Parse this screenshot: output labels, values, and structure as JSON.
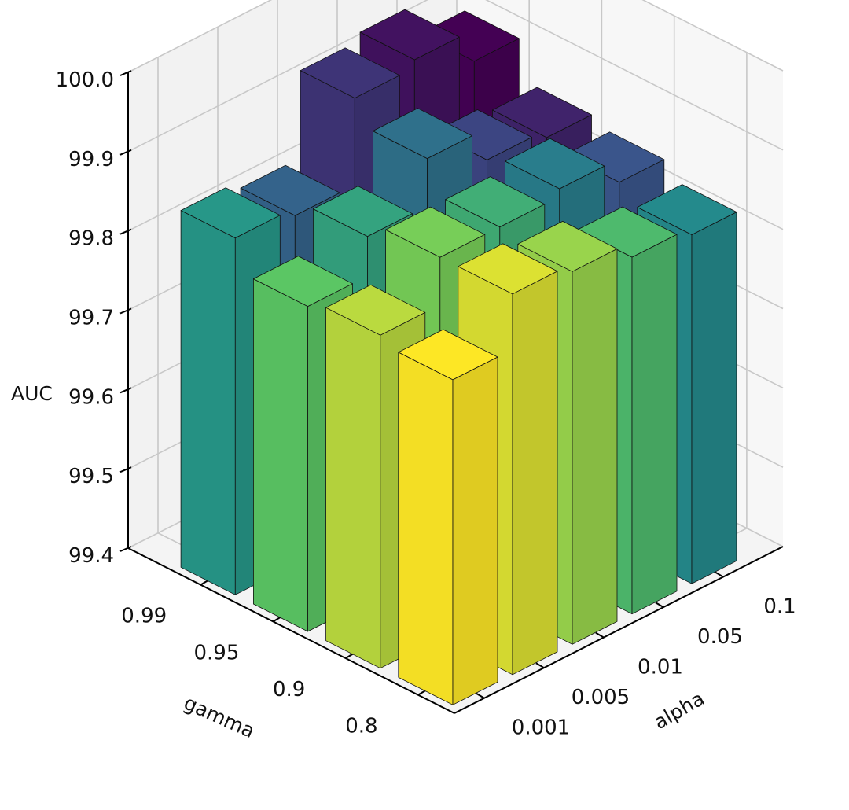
{
  "chart_data": {
    "type": "bar3d",
    "xlabel": "alpha",
    "ylabel": "gamma",
    "zlabel": "AUC",
    "alpha_ticks": [
      "0.001",
      "0.005",
      "0.01",
      "0.05",
      "0.1"
    ],
    "gamma_ticks": [
      "0.8",
      "0.9",
      "0.95",
      "0.99"
    ],
    "z_ticks": [
      "99.4",
      "99.5",
      "99.6",
      "99.7",
      "99.8",
      "99.9",
      "100.0"
    ],
    "zlim": [
      99.4,
      100.0
    ],
    "grid": true,
    "colormap": "viridis",
    "series": [
      {
        "gamma": "0.99",
        "values": [
          99.85,
          99.84,
          99.95,
          99.96,
          99.92
        ]
      },
      {
        "gamma": "0.95",
        "values": [
          99.81,
          99.86,
          99.92,
          99.88,
          99.87
        ]
      },
      {
        "gamma": "0.9",
        "values": [
          99.82,
          99.88,
          99.88,
          99.89,
          99.86
        ]
      },
      {
        "gamma": "0.8",
        "values": [
          99.81,
          99.88,
          99.87,
          99.85,
          99.84
        ]
      }
    ]
  }
}
